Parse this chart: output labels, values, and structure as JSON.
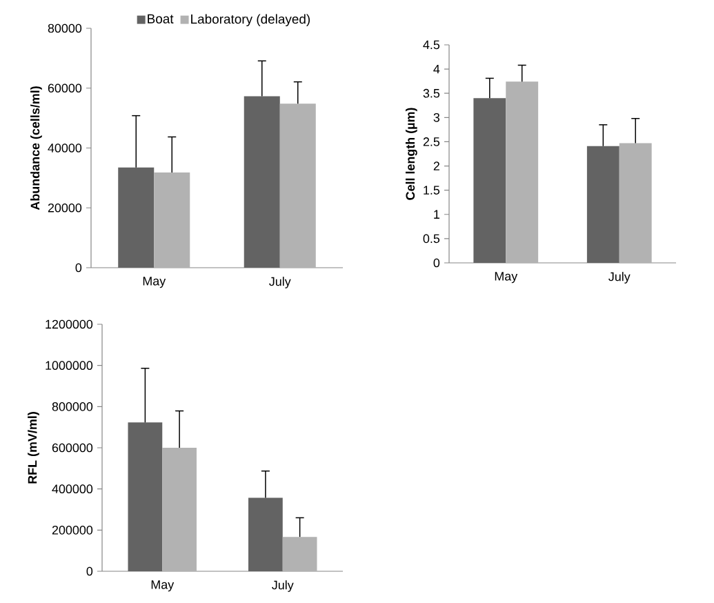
{
  "chart_data": [
    {
      "type": "bar",
      "categories": [
        "May",
        "July"
      ],
      "ylabel": "Abundance (cells/ml)",
      "ylim": [
        0,
        80000
      ],
      "yticks": [
        0,
        20000,
        40000,
        60000,
        80000
      ],
      "legend": "top",
      "series": [
        {
          "name": "Boat",
          "color": "#636363",
          "values": [
            33500,
            57300
          ],
          "errors": [
            [
              33500,
              50800
            ],
            [
              57300,
              69100
            ]
          ]
        },
        {
          "name": "Laboratory (delayed)",
          "color": "#b2b2b2",
          "values": [
            31800,
            54800
          ],
          "errors": [
            [
              31800,
              43700
            ],
            [
              54800,
              62100
            ]
          ]
        }
      ]
    },
    {
      "type": "bar",
      "categories": [
        "May",
        "July"
      ],
      "ylabel": "Cell length (µm)",
      "ylim": [
        0,
        4.5
      ],
      "yticks": [
        0,
        0.5,
        1,
        1.5,
        2,
        2.5,
        3,
        3.5,
        4,
        4.5
      ],
      "series": [
        {
          "color": "#636363",
          "values": [
            3.4,
            2.41
          ],
          "errors": [
            [
              3.4,
              3.81
            ],
            [
              2.41,
              2.85
            ]
          ]
        },
        {
          "color": "#b2b2b2",
          "values": [
            3.74,
            2.47
          ],
          "errors": [
            [
              3.74,
              4.08
            ],
            [
              2.47,
              2.98
            ]
          ]
        }
      ]
    },
    {
      "type": "bar",
      "categories": [
        "May",
        "July"
      ],
      "ylabel": "RFL (mV/ml)",
      "ylim": [
        0,
        1200000
      ],
      "yticks": [
        0,
        200000,
        400000,
        600000,
        800000,
        1000000,
        1200000
      ],
      "series": [
        {
          "color": "#636363",
          "values": [
            723000,
            357000
          ],
          "errors": [
            [
              723000,
              986000
            ],
            [
              357000,
              487000
            ]
          ]
        },
        {
          "color": "#b2b2b2",
          "values": [
            600000,
            167000
          ],
          "errors": [
            [
              600000,
              779000
            ],
            [
              167000,
              260000
            ]
          ]
        }
      ]
    }
  ]
}
